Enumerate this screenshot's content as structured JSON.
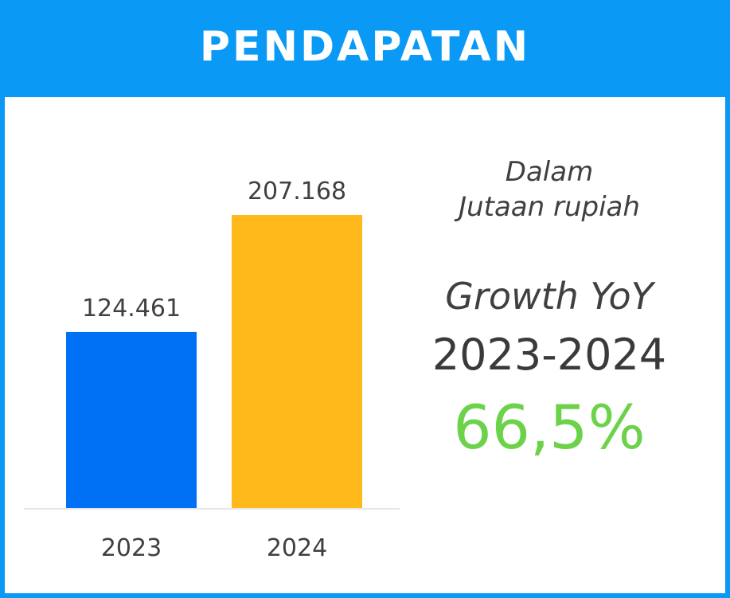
{
  "header": {
    "title": "PENDAPATAN"
  },
  "chart_data": {
    "type": "bar",
    "title": "PENDAPATAN",
    "categories": [
      "2023",
      "2024"
    ],
    "values": [
      124461,
      207168
    ],
    "value_labels": [
      "124.461",
      "207.168"
    ],
    "bar_colors": [
      "#0070f5",
      "#ffb91a"
    ],
    "ylim": [
      0,
      228000
    ],
    "grid": false,
    "legend": "none",
    "xlabel": "",
    "ylabel": ""
  },
  "side_panel": {
    "unit_line1": "Dalam",
    "unit_line2": "Jutaan rupiah",
    "growth_label": "Growth YoY",
    "growth_period": "2023-2024",
    "growth_value": "66,5%",
    "growth_color": "#6cd24a"
  },
  "colors": {
    "header_bg": "#0a99f5",
    "frame": "#0a99f5",
    "text": "#404040"
  }
}
